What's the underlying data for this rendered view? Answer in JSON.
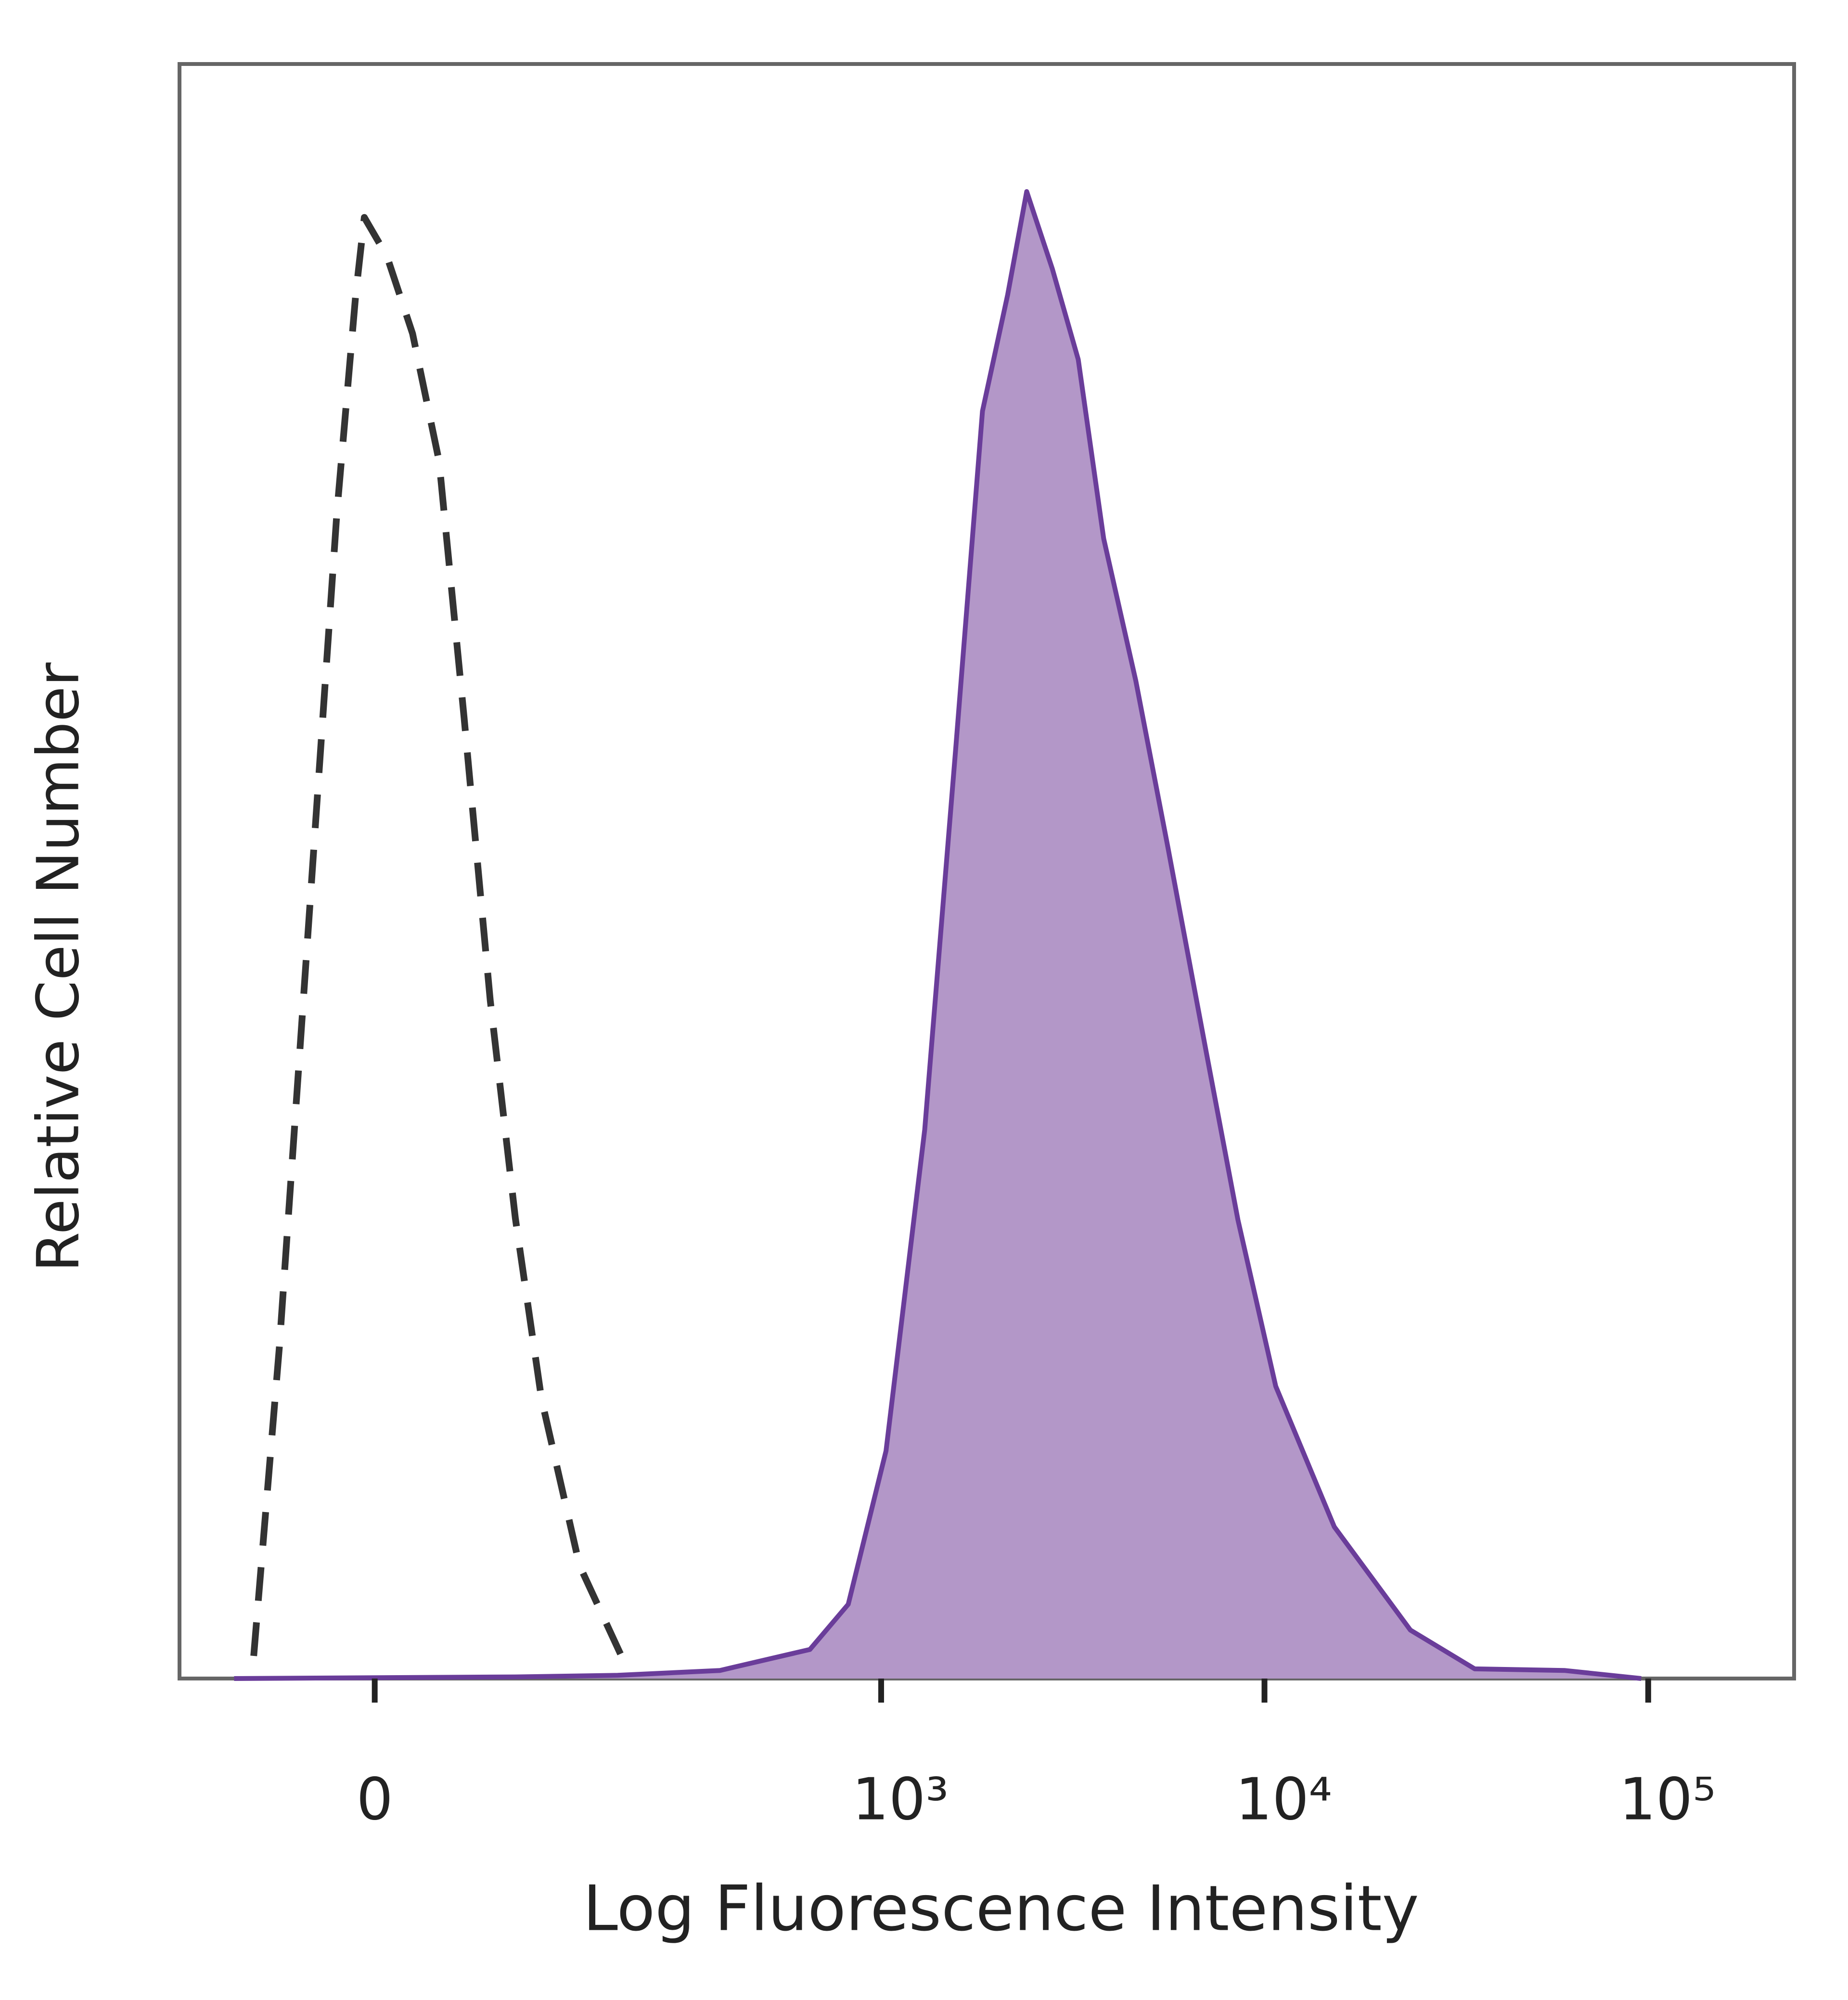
{
  "chart_data": {
    "type": "histogram-overlay",
    "xlabel": "Log Fluorescence Intensity",
    "ylabel": "Relative Cell Number",
    "xscale": "biexponential",
    "xlim": [
      -140,
      240000
    ],
    "ylim": [
      0,
      100
    ],
    "xticks": [
      0,
      {
        "value": 1000,
        "label": "10³"
      },
      {
        "value": 10000,
        "label": "10⁴"
      },
      {
        "value": 100000,
        "label": "10⁵"
      }
    ],
    "series": [
      {
        "color": "#333333",
        "dashed": true,
        "filled": false,
        "x": [
          -76,
          -58,
          -38,
          -22,
          -11,
          -6,
          7,
          22,
          38,
          54,
          72,
          91,
          113,
          150,
          204
        ],
        "values": [
          1.4,
          20.5,
          48.3,
          72.2,
          85.7,
          90.5,
          88.1,
          83.3,
          75.4,
          59.5,
          42.0,
          28.5,
          17.3,
          7.0,
          1.0
        ]
      },
      {
        "color": "#6a3d9a",
        "dashed": false,
        "filled": true,
        "fill": "#b397c8",
        "x": [
          -91,
          91,
          195,
          375,
          650,
          820,
          1030,
          1300,
          1570,
          1840,
          2140,
          2400,
          2800,
          3270,
          3810,
          4620,
          5600,
          7050,
          8530,
          10700,
          15200,
          24000,
          35300,
          60500,
          95900
        ],
        "values": [
          0,
          0.1,
          0.2,
          0.5,
          1.8,
          4.6,
          14.1,
          34.0,
          57.9,
          78.5,
          85.7,
          92.1,
          87.3,
          81.7,
          70.6,
          61.8,
          51.5,
          38.8,
          28.4,
          18.1,
          9.4,
          3.0,
          0.6,
          0.5,
          0
        ]
      }
    ]
  }
}
